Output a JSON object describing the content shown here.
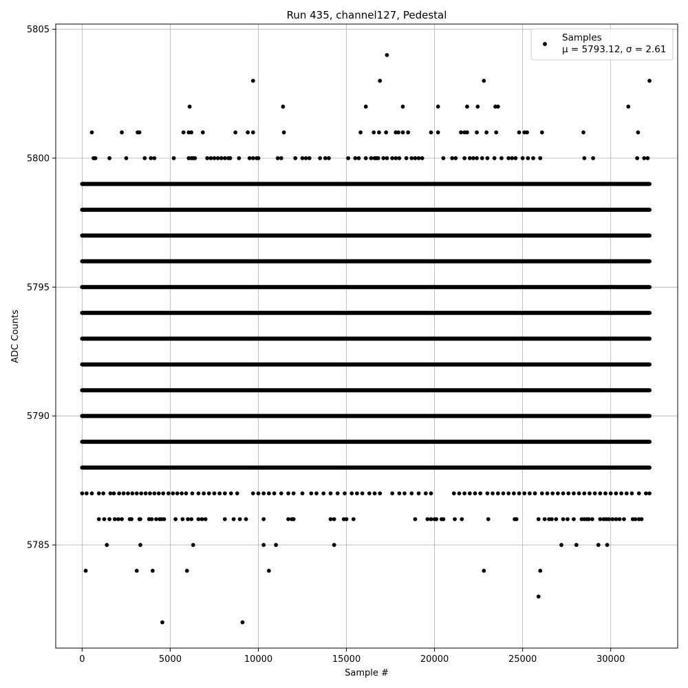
{
  "chart_data": {
    "type": "scatter",
    "title": "Run 435, channel127, Pedestal",
    "xlabel": "Sample #",
    "ylabel": "ADC Counts",
    "xlim": [
      -1500,
      33800
    ],
    "ylim": [
      5781.0,
      5805.2
    ],
    "xticks": [
      0,
      5000,
      10000,
      15000,
      20000,
      25000,
      30000
    ],
    "xtick_labels": [
      "0",
      "5000",
      "10000",
      "15000",
      "20000",
      "25000",
      "30000"
    ],
    "yticks": [
      5785,
      5790,
      5795,
      5800,
      5805
    ],
    "ytick_labels": [
      "5785",
      "5790",
      "5795",
      "5800",
      "5805"
    ],
    "grid": true,
    "legend_position": "top-right",
    "marker_color": "#000000",
    "series": [
      {
        "name": "Samples",
        "stats_label": "μ = 5793.12, σ = 2.61",
        "mean": 5793.12,
        "sigma": 2.61,
        "n_samples": 32200,
        "dense_levels": [
          {
            "y": 5788,
            "x_range": [
              0,
              32200
            ]
          },
          {
            "y": 5789,
            "x_range": [
              0,
              32200
            ]
          },
          {
            "y": 5790,
            "x_range": [
              0,
              32200
            ]
          },
          {
            "y": 5791,
            "x_range": [
              0,
              32200
            ]
          },
          {
            "y": 5792,
            "x_range": [
              0,
              32200
            ]
          },
          {
            "y": 5793,
            "x_range": [
              0,
              32200
            ]
          },
          {
            "y": 5794,
            "x_range": [
              0,
              32200
            ]
          },
          {
            "y": 5795,
            "x_range": [
              0,
              32200
            ]
          },
          {
            "y": 5796,
            "x_range": [
              0,
              32200
            ]
          },
          {
            "y": 5797,
            "x_range": [
              0,
              32200
            ]
          },
          {
            "y": 5798,
            "x_range": [
              0,
              32200
            ]
          },
          {
            "y": 5799,
            "x_range": [
              0,
              32200
            ]
          }
        ],
        "levels": [
          {
            "y": 5787,
            "x": [
              0,
              250,
              550,
              950,
              1200,
              1600,
              1800,
              2100,
              2350,
              2600,
              2850,
              3100,
              3350,
              3600,
              3850,
              4100,
              4350,
              4600,
              4900,
              5150,
              5400,
              5650,
              5900,
              6250,
              6600,
              6900,
              7200,
              7500,
              7800,
              8100,
              8450,
              8800,
              9700,
              10000,
              10300,
              10600,
              10900,
              11300,
              11700,
              12000,
              12500,
              13000,
              13300,
              13700,
              14100,
              14500,
              14900,
              15300,
              15600,
              15900,
              16300,
              16600,
              16900,
              17600,
              18000,
              18300,
              18700,
              19100,
              19500,
              19800,
              21100,
              21400,
              21700,
              22000,
              22300,
              22600,
              23000,
              23300,
              23600,
              23900,
              24200,
              24500,
              24800,
              25100,
              25400,
              25700,
              26100,
              26400,
              26700,
              27000,
              27300,
              27600,
              27900,
              28200,
              28500,
              28800,
              29100,
              29400,
              29700,
              30000,
              30300,
              30600,
              30900,
              31200,
              31600,
              32000,
              32200
            ]
          },
          {
            "y": 5786,
            "x": [
              950,
              1250,
              1550,
              1850,
              2050,
              2250,
              2700,
              2800,
              3250,
              3300,
              3800,
              3950,
              4200,
              4400,
              4500,
              4650,
              5300,
              5700,
              6000,
              6200,
              6600,
              6800,
              7000,
              8100,
              8600,
              8950,
              9300,
              10300,
              11700,
              11900,
              12000,
              14100,
              14300,
              14850,
              15000,
              15400,
              18900,
              19600,
              19800,
              20000,
              20100,
              20400,
              20500,
              21150,
              21550,
              23050,
              24550,
              24650,
              25900,
              26250,
              26500,
              26650,
              26900,
              27300,
              27550,
              27900,
              28350,
              28500,
              28650,
              28750,
              28950,
              29400,
              29600,
              29750,
              29900,
              30100,
              30300,
              30500,
              30750,
              31250,
              31400,
              31600,
              31750
            ]
          },
          {
            "y": 5785,
            "x": [
              1400,
              3300,
              6300,
              10300,
              11000,
              14300,
              27200,
              28050,
              29300,
              29800
            ]
          },
          {
            "y": 5784,
            "x": [
              200,
              3100,
              4000,
              5950,
              10600,
              22800,
              26000
            ]
          },
          {
            "y": 5783,
            "x": [
              25900
            ]
          },
          {
            "y": 5782,
            "x": [
              4550,
              9100
            ]
          },
          {
            "y": 5800,
            "x": [
              650,
              750,
              1550,
              2500,
              3550,
              3900,
              4100,
              5200,
              6050,
              6200,
              6300,
              6400,
              7100,
              7300,
              7500,
              7700,
              7900,
              8100,
              8300,
              8400,
              8900,
              9500,
              9700,
              9900,
              10000,
              11100,
              11300,
              12100,
              12500,
              12700,
              12900,
              13500,
              13800,
              14000,
              15100,
              15500,
              15700,
              16100,
              16400,
              16600,
              16700,
              16800,
              17100,
              17300,
              17600,
              17800,
              18000,
              18400,
              18700,
              18900,
              19100,
              19300,
              20500,
              21000,
              21200,
              21700,
              22000,
              22200,
              22400,
              22700,
              23000,
              23400,
              23800,
              24200,
              24400,
              24600,
              25000,
              25300,
              25600,
              26000,
              28500,
              29000,
              31500,
              31900,
              32100
            ]
          },
          {
            "y": 5801,
            "x": [
              550,
              2250,
              3150,
              3250,
              5750,
              6050,
              6200,
              6850,
              8700,
              9400,
              9700,
              11450,
              15800,
              16550,
              16850,
              17250,
              17800,
              17950,
              18200,
              18500,
              19800,
              20200,
              21500,
              21700,
              21850,
              22400,
              22950,
              23500,
              24800,
              25100,
              25250,
              26100,
              28450,
              31550
            ]
          },
          {
            "y": 5802,
            "x": [
              6100,
              11400,
              16100,
              18200,
              20200,
              21850,
              22450,
              23450,
              23600,
              31000
            ]
          },
          {
            "y": 5803,
            "x": [
              9700,
              16900,
              22800,
              32200
            ]
          },
          {
            "y": 5804,
            "x": [
              17300
            ]
          }
        ]
      }
    ]
  }
}
